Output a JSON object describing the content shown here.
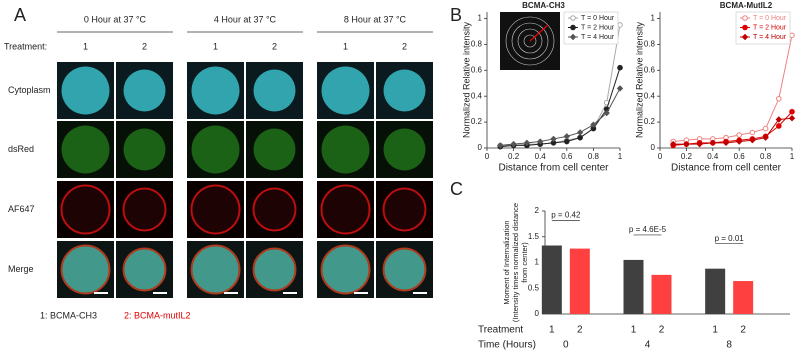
{
  "panel_a": {
    "label": "A",
    "columns": [
      {
        "header": "0 Hour at 37 °C",
        "treatments": [
          "1",
          "2"
        ]
      },
      {
        "header": "4 Hour at 37 °C",
        "treatments": [
          "1",
          "2"
        ]
      },
      {
        "header": "8 Hour at 37 °C",
        "treatments": [
          "1",
          "2"
        ]
      }
    ],
    "treatment_label": "Treatment:",
    "rows": [
      "Cytoplasm",
      "dsRed",
      "AF647",
      "Merge"
    ],
    "legend": [
      "1: BCMA-CH3",
      "2: BCMA-mutIL2"
    ]
  },
  "panel_b_label": "B",
  "panel_c_label": "C",
  "chart_data": [
    {
      "type": "line",
      "title": "BCMA-CH3",
      "xlabel": "Distance from cell center",
      "ylabel": "Normalized Relative intensity",
      "x": [
        0.1,
        0.2,
        0.3,
        0.4,
        0.5,
        0.6,
        0.7,
        0.8,
        0.9,
        1
      ],
      "series": [
        {
          "name": "T = 0 Hour",
          "color": "#aaaaaa",
          "marker": "circle-open",
          "values": [
            0.02,
            0.02,
            0.03,
            0.03,
            0.04,
            0.06,
            0.08,
            0.15,
            0.35,
            0.95
          ]
        },
        {
          "name": "T = 2 Hour",
          "color": "#222222",
          "marker": "circle",
          "values": [
            0.01,
            0.02,
            0.02,
            0.03,
            0.04,
            0.05,
            0.08,
            0.15,
            0.3,
            0.62
          ]
        },
        {
          "name": "T = 4 Hour",
          "color": "#555555",
          "marker": "diamond",
          "values": [
            0.02,
            0.03,
            0.04,
            0.05,
            0.07,
            0.09,
            0.12,
            0.18,
            0.27,
            0.46
          ]
        }
      ],
      "xlim": [
        0,
        1
      ],
      "ylim": [
        0,
        1.05
      ],
      "xticks": [
        0,
        0.2,
        0.4,
        0.6,
        0.8,
        1
      ],
      "yticks": [
        0,
        0.2,
        0.4,
        0.6,
        0.8,
        1
      ],
      "legend": "upper right"
    },
    {
      "type": "line",
      "title": "BCMA-MutIL2",
      "xlabel": "Distance from cell center",
      "ylabel": "Normalized Relative intensity",
      "x": [
        0.1,
        0.2,
        0.3,
        0.4,
        0.5,
        0.6,
        0.7,
        0.8,
        0.9,
        1
      ],
      "series": [
        {
          "name": "T = 0 Hour",
          "color": "#f08080",
          "marker": "circle-open",
          "values": [
            0.05,
            0.06,
            0.07,
            0.07,
            0.08,
            0.1,
            0.12,
            0.15,
            0.38,
            0.87
          ]
        },
        {
          "name": "T = 2 Hour",
          "color": "#e00000",
          "marker": "circle",
          "values": [
            0.02,
            0.03,
            0.04,
            0.04,
            0.05,
            0.06,
            0.07,
            0.09,
            0.17,
            0.28
          ]
        },
        {
          "name": "T = 4 Hour",
          "color": "#c00000",
          "marker": "diamond",
          "values": [
            0.03,
            0.03,
            0.03,
            0.04,
            0.04,
            0.05,
            0.06,
            0.08,
            0.22,
            0.23
          ]
        }
      ],
      "xlim": [
        0,
        1
      ],
      "ylim": [
        0,
        1.05
      ],
      "xticks": [
        0,
        0.2,
        0.4,
        0.6,
        0.8,
        1
      ],
      "yticks": [
        0,
        0.2,
        0.4,
        0.6,
        0.8,
        1
      ],
      "legend": "upper right"
    },
    {
      "type": "bar",
      "ylabel": [
        "Moment of Internalization",
        "(Intensity times normalized distance",
        "from center)"
      ],
      "group_label": "Treatment",
      "xlabel": "Time (Hours)",
      "categories": [
        "0",
        "4",
        "8"
      ],
      "series": [
        {
          "name": "1",
          "color": "#404040",
          "values": [
            1.33,
            1.05,
            0.88
          ]
        },
        {
          "name": "2",
          "color": "#ff4040",
          "values": [
            1.27,
            0.76,
            0.64
          ]
        }
      ],
      "annotations": [
        "p = 0.42",
        "p = 4.6E-5",
        "p = 0.01"
      ],
      "ylim": [
        0,
        2
      ],
      "yticks": [
        0,
        0.5,
        1,
        1.5,
        2
      ]
    }
  ]
}
